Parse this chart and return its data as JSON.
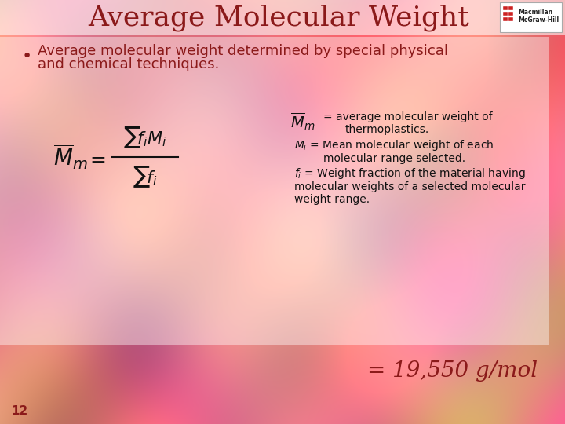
{
  "title": "Average Molecular Weight",
  "title_color": "#8B1A1A",
  "title_fontsize": 26,
  "bullet_color": "#8B1A1A",
  "bullet_fontsize": 13,
  "formula_color": "#111111",
  "desc_color": "#111111",
  "desc_fontsize": 10,
  "result_text": "= 19,550 g/mol",
  "result_color": "#8B1A1A",
  "result_fontsize": 20,
  "slide_number": "12",
  "slide_number_color": "#8B1A1A",
  "slide_number_fontsize": 11
}
